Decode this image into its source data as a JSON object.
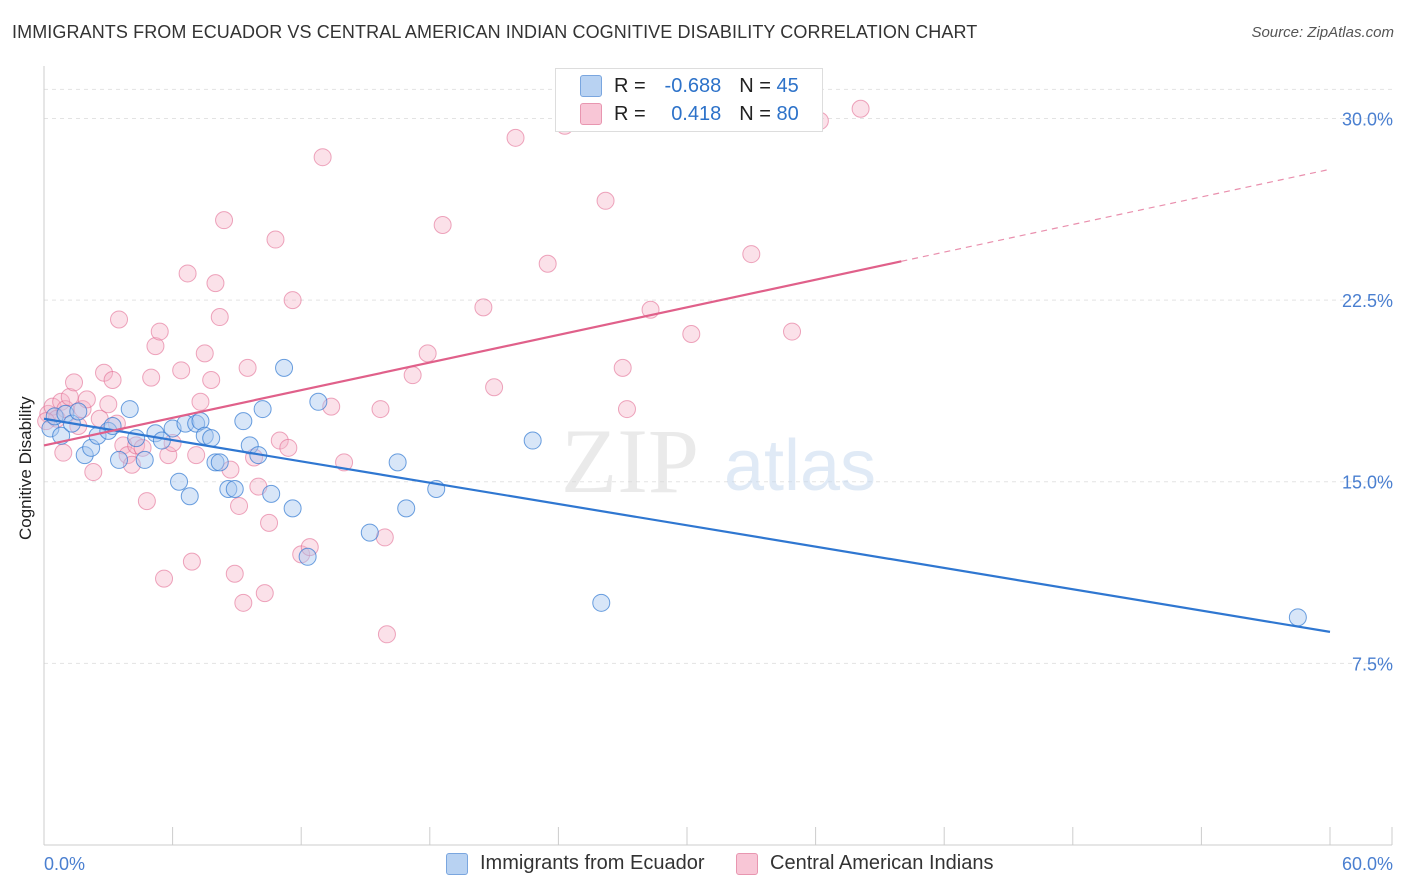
{
  "title": "IMMIGRANTS FROM ECUADOR VS CENTRAL AMERICAN INDIAN COGNITIVE DISABILITY CORRELATION CHART",
  "source": "Source: ZipAtlas.com",
  "watermark": {
    "zip": "ZIP",
    "atlas": "atlas"
  },
  "legend": {
    "rows": [
      {
        "r_label": "R =",
        "r_value": "-0.688",
        "n_label": "N =",
        "n_value": "45"
      },
      {
        "r_label": "R =",
        "r_value": "0.418",
        "n_label": "N =",
        "n_value": "80"
      }
    ]
  },
  "colors": {
    "blue": "#2f77d1",
    "blue_fill": "#a9c8ef",
    "pink": "#e0608a",
    "pink_fill": "#f4b3c8",
    "grid": "#e3e3e3",
    "tick_text": "#4a7fd0"
  },
  "chart_data": {
    "type": "scatter",
    "title": "IMMIGRANTS FROM ECUADOR VS CENTRAL AMERICAN INDIAN COGNITIVE DISABILITY CORRELATION CHART",
    "xlabel": "",
    "ylabel": "Cognitive Disability",
    "xlim": [
      0,
      60
    ],
    "ylim": [
      0,
      32
    ],
    "x_tick_labels": [
      "0.0%",
      "60.0%"
    ],
    "y_ticks": [
      7.5,
      15.0,
      22.5,
      30.0
    ],
    "y_tick_labels": [
      "7.5%",
      "15.0%",
      "22.5%",
      "30.0%"
    ],
    "grid": true,
    "legend_position": "top-center",
    "series": [
      {
        "name": "Immigrants from Ecuador",
        "color": "#2f77d1",
        "trend": {
          "x": [
            0,
            60
          ],
          "y": [
            17.6,
            8.8
          ]
        },
        "points": [
          [
            0.3,
            17.2
          ],
          [
            0.5,
            17.7
          ],
          [
            0.8,
            16.9
          ],
          [
            1.0,
            17.8
          ],
          [
            1.3,
            17.4
          ],
          [
            1.6,
            17.9
          ],
          [
            1.9,
            16.1
          ],
          [
            2.2,
            16.4
          ],
          [
            2.5,
            16.9
          ],
          [
            3.0,
            17.1
          ],
          [
            3.2,
            17.3
          ],
          [
            3.5,
            15.9
          ],
          [
            4.0,
            18.0
          ],
          [
            4.3,
            16.8
          ],
          [
            4.7,
            15.9
          ],
          [
            5.2,
            17.0
          ],
          [
            5.5,
            16.7
          ],
          [
            6.0,
            17.2
          ],
          [
            6.3,
            15.0
          ],
          [
            6.6,
            17.4
          ],
          [
            6.8,
            14.4
          ],
          [
            7.1,
            17.4
          ],
          [
            7.3,
            17.5
          ],
          [
            7.5,
            16.9
          ],
          [
            7.8,
            16.8
          ],
          [
            8.0,
            15.8
          ],
          [
            8.2,
            15.8
          ],
          [
            8.6,
            14.7
          ],
          [
            8.9,
            14.7
          ],
          [
            9.3,
            17.5
          ],
          [
            9.6,
            16.5
          ],
          [
            10.0,
            16.1
          ],
          [
            10.2,
            18.0
          ],
          [
            10.6,
            14.5
          ],
          [
            11.2,
            19.7
          ],
          [
            11.6,
            13.9
          ],
          [
            12.3,
            11.9
          ],
          [
            12.8,
            18.3
          ],
          [
            15.2,
            12.9
          ],
          [
            16.5,
            15.8
          ],
          [
            16.9,
            13.9
          ],
          [
            18.3,
            14.7
          ],
          [
            22.8,
            16.7
          ],
          [
            26.0,
            10.0
          ],
          [
            58.5,
            9.4
          ]
        ]
      },
      {
        "name": "Central American Indians",
        "color": "#e0608a",
        "trend": {
          "x": [
            0,
            40
          ],
          "y": [
            16.5,
            24.1
          ]
        },
        "trend_dashed": {
          "x": [
            40,
            60
          ],
          "y": [
            24.1,
            27.9
          ]
        },
        "points": [
          [
            0.2,
            17.8
          ],
          [
            0.4,
            18.1
          ],
          [
            0.6,
            17.6
          ],
          [
            0.8,
            18.3
          ],
          [
            1.0,
            18.0
          ],
          [
            1.2,
            18.5
          ],
          [
            1.4,
            19.1
          ],
          [
            1.6,
            17.3
          ],
          [
            1.8,
            18.0
          ],
          [
            2.0,
            18.4
          ],
          [
            2.3,
            15.4
          ],
          [
            2.6,
            17.6
          ],
          [
            2.8,
            19.5
          ],
          [
            3.0,
            18.2
          ],
          [
            3.2,
            19.2
          ],
          [
            3.4,
            17.4
          ],
          [
            3.5,
            21.7
          ],
          [
            3.7,
            16.5
          ],
          [
            3.9,
            16.1
          ],
          [
            4.1,
            15.7
          ],
          [
            4.3,
            16.5
          ],
          [
            4.6,
            16.4
          ],
          [
            4.8,
            14.2
          ],
          [
            5.0,
            19.3
          ],
          [
            5.2,
            20.6
          ],
          [
            5.4,
            21.2
          ],
          [
            5.6,
            11.0
          ],
          [
            5.8,
            16.1
          ],
          [
            6.0,
            16.6
          ],
          [
            6.4,
            19.6
          ],
          [
            6.7,
            23.6
          ],
          [
            6.9,
            11.7
          ],
          [
            7.1,
            16.1
          ],
          [
            7.3,
            18.3
          ],
          [
            7.5,
            20.3
          ],
          [
            7.8,
            19.2
          ],
          [
            8.0,
            23.2
          ],
          [
            8.2,
            21.8
          ],
          [
            8.4,
            25.8
          ],
          [
            8.7,
            15.5
          ],
          [
            8.9,
            11.2
          ],
          [
            9.1,
            14.0
          ],
          [
            9.3,
            10.0
          ],
          [
            9.5,
            19.7
          ],
          [
            9.8,
            16.0
          ],
          [
            10.0,
            14.8
          ],
          [
            10.3,
            10.4
          ],
          [
            10.5,
            13.3
          ],
          [
            10.8,
            25.0
          ],
          [
            11.0,
            16.7
          ],
          [
            11.4,
            16.4
          ],
          [
            11.6,
            22.5
          ],
          [
            12.0,
            12.0
          ],
          [
            12.4,
            12.3
          ],
          [
            13.0,
            28.4
          ],
          [
            13.4,
            18.1
          ],
          [
            14.0,
            15.8
          ],
          [
            15.7,
            18.0
          ],
          [
            15.9,
            12.7
          ],
          [
            16.0,
            8.7
          ],
          [
            17.2,
            19.4
          ],
          [
            17.9,
            20.3
          ],
          [
            18.6,
            25.6
          ],
          [
            20.5,
            22.2
          ],
          [
            21.0,
            18.9
          ],
          [
            22.0,
            29.2
          ],
          [
            23.5,
            24.0
          ],
          [
            24.3,
            29.7
          ],
          [
            26.2,
            26.6
          ],
          [
            27.0,
            19.7
          ],
          [
            27.2,
            18.0
          ],
          [
            28.3,
            22.1
          ],
          [
            30.2,
            21.1
          ],
          [
            31.8,
            31.0
          ],
          [
            33.0,
            24.4
          ],
          [
            34.9,
            21.2
          ],
          [
            36.2,
            29.9
          ],
          [
            38.1,
            30.4
          ],
          [
            0.1,
            17.5
          ],
          [
            0.9,
            16.2
          ]
        ]
      }
    ]
  },
  "bottom_legend": [
    "Immigrants from Ecuador",
    "Central American Indians"
  ]
}
